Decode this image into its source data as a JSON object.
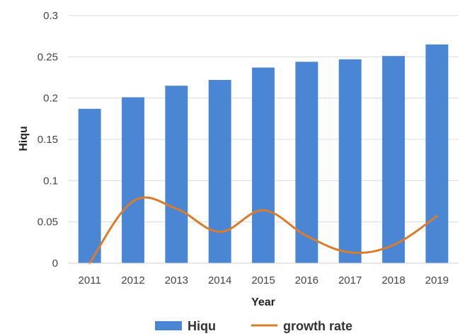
{
  "chart_data": {
    "type": "bar",
    "categories": [
      "2011",
      "2012",
      "2013",
      "2014",
      "2015",
      "2016",
      "2017",
      "2018",
      "2019"
    ],
    "series": [
      {
        "name": "Hiqu",
        "type": "bar",
        "axis": "left",
        "color": "#4a86d4",
        "values": [
          0.187,
          0.201,
          0.215,
          0.222,
          0.237,
          0.244,
          0.247,
          0.251,
          0.265
        ]
      },
      {
        "name": "growth rate",
        "type": "line",
        "axis": "left",
        "color": "#d97c2b",
        "values": [
          0.0,
          0.075,
          0.066,
          0.038,
          0.064,
          0.033,
          0.013,
          0.022,
          0.057
        ]
      }
    ],
    "yticks": [
      "0",
      "0.05",
      "0.1",
      "0.15",
      "0.2",
      "0.25",
      "0.3"
    ],
    "ytick_values": [
      0,
      0.05,
      0.1,
      0.15,
      0.2,
      0.25,
      0.3
    ],
    "ylim": [
      0,
      0.3
    ],
    "xlabel": "Year",
    "ylabel": "Hiqu",
    "grid": "horizontal",
    "legend": "bottom"
  }
}
